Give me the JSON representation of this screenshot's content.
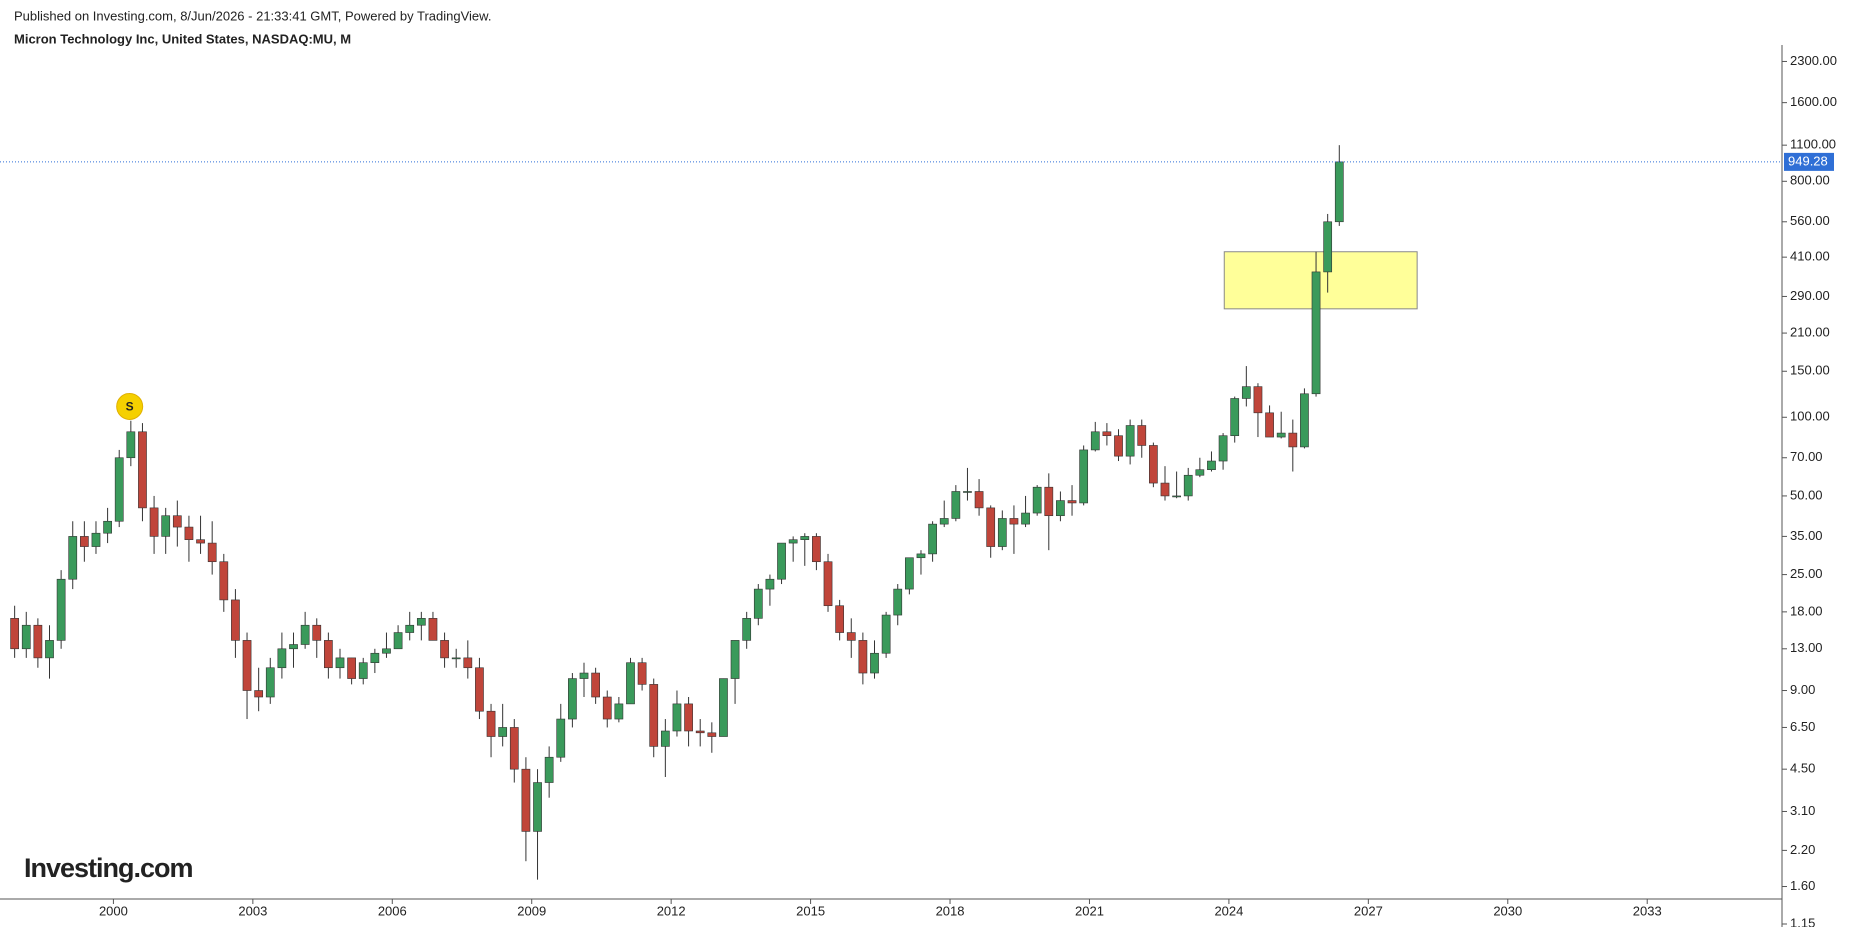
{
  "header": {
    "published": "Published on Investing.com, 8/Jun/2026 - 21:33:41 GMT, Powered by TradingView.",
    "symbol": "Micron Technology Inc, United States, NASDAQ:MU, M"
  },
  "logo": "Investing.com",
  "chart_data": {
    "type": "candlestick",
    "log_y": true,
    "up_color": "#3a9a5b",
    "down_color": "#c0453a",
    "x": [
      1997.75,
      1998,
      1998.25,
      1998.5,
      1998.75,
      1999,
      1999.25,
      1999.5,
      1999.75,
      2000,
      2000.25,
      2000.5,
      2000.75,
      2001,
      2001.25,
      2001.5,
      2001.75,
      2002,
      2002.25,
      2002.5,
      2002.75,
      2003,
      2003.25,
      2003.5,
      2003.75,
      2004,
      2004.25,
      2004.5,
      2004.75,
      2005,
      2005.25,
      2005.5,
      2005.75,
      2006,
      2006.25,
      2006.5,
      2006.75,
      2007,
      2007.25,
      2007.5,
      2007.75,
      2008,
      2008.25,
      2008.5,
      2008.75,
      2009,
      2009.25,
      2009.5,
      2009.75,
      2010,
      2010.25,
      2010.5,
      2010.75,
      2011,
      2011.25,
      2011.5,
      2011.75,
      2012,
      2012.25,
      2012.5,
      2012.75,
      2013,
      2013.25,
      2013.5,
      2013.75,
      2014,
      2014.25,
      2014.5,
      2014.75,
      2015,
      2015.25,
      2015.5,
      2015.75,
      2016,
      2016.25,
      2016.5,
      2016.75,
      2017,
      2017.25,
      2017.5,
      2017.75,
      2018,
      2018.25,
      2018.5,
      2018.75,
      2019,
      2019.25,
      2019.5,
      2019.75,
      2020,
      2020.25,
      2020.5,
      2020.75,
      2021,
      2021.25,
      2021.5,
      2021.75,
      2022,
      2022.25,
      2022.5,
      2022.75,
      2023,
      2023.25,
      2023.5,
      2023.75,
      2024,
      2024.25,
      2024.5,
      2024.75,
      2025,
      2025.25,
      2025.5,
      2025.75,
      2026,
      2026.25
    ],
    "open": [
      17,
      13,
      16,
      12,
      14,
      24,
      35,
      32,
      36,
      40,
      70,
      88,
      45,
      35,
      42,
      38,
      34,
      33,
      28,
      20,
      14,
      9,
      8.5,
      11,
      13,
      13.5,
      16,
      14,
      11,
      12,
      10,
      11.5,
      12.5,
      13,
      15,
      16,
      17,
      14,
      12,
      12,
      11,
      7.5,
      6,
      6.5,
      4.5,
      2.6,
      4,
      5,
      7,
      10,
      10.5,
      8.5,
      7,
      8,
      11.5,
      9.5,
      5.5,
      6.3,
      8,
      6.3,
      6.2,
      6,
      10,
      14,
      17,
      22,
      24,
      33,
      34,
      35,
      28,
      19,
      15,
      14,
      10.5,
      12.5,
      17.5,
      22,
      29,
      30,
      39,
      41,
      52,
      52,
      45,
      32,
      41,
      39,
      43,
      54,
      42,
      48,
      47,
      75,
      88,
      85,
      71,
      93,
      78,
      56,
      50,
      50,
      60,
      63,
      68,
      85,
      118,
      131,
      104,
      84,
      87,
      77,
      123,
      360,
      560
    ],
    "high": [
      19,
      18,
      17,
      16,
      26,
      40,
      40,
      40,
      45,
      75,
      97,
      95,
      50,
      45,
      48,
      42,
      42,
      40,
      30,
      22,
      15,
      11,
      12,
      15,
      15,
      18,
      17,
      15,
      13,
      12,
      12,
      13,
      15,
      16,
      18,
      18,
      18,
      15,
      13,
      14,
      12,
      8,
      8,
      7,
      5,
      4.5,
      5.5,
      8,
      10.5,
      11.5,
      11,
      9,
      8.5,
      12,
      12,
      10,
      7,
      9,
      8.5,
      7,
      6.8,
      10,
      14,
      18,
      23,
      25,
      33,
      35,
      36,
      36,
      30,
      20,
      17,
      15,
      14,
      18,
      23,
      29,
      31,
      40,
      48,
      55,
      64,
      58,
      46,
      44,
      46,
      50,
      55,
      61,
      52,
      55,
      78,
      96,
      95,
      90,
      98,
      98,
      80,
      65,
      62,
      64,
      70,
      74,
      87,
      120,
      157,
      135,
      111,
      105,
      98,
      129,
      430,
      600,
      1100
    ],
    "low": [
      12,
      12,
      11,
      10,
      13,
      22,
      28,
      30,
      33,
      38,
      65,
      40,
      30,
      30,
      32,
      28,
      30,
      25,
      18,
      12,
      7,
      7.5,
      8,
      10,
      11,
      13,
      12,
      10,
      10,
      9.5,
      9.5,
      10.5,
      12,
      13,
      14,
      14,
      14,
      11,
      11,
      10,
      7,
      5,
      5.5,
      4,
      2,
      1.7,
      3.5,
      4.8,
      6.5,
      8.5,
      8,
      6.5,
      6.8,
      8,
      9,
      5,
      4.2,
      6,
      5.5,
      5.5,
      5.2,
      6,
      8,
      13,
      16,
      19,
      23,
      28,
      27,
      26,
      18,
      14,
      12,
      9.5,
      10,
      12,
      16,
      21,
      25,
      28,
      38,
      40,
      48,
      42,
      29,
      31,
      30,
      38,
      42,
      31,
      40,
      42,
      46,
      74,
      78,
      68,
      66,
      70,
      54,
      48,
      49,
      48,
      59,
      62,
      63,
      80,
      110,
      84,
      86,
      83,
      62,
      76,
      120,
      300,
      540
    ],
    "close": [
      13,
      16,
      12,
      14,
      24,
      35,
      32,
      36,
      40,
      70,
      88,
      45,
      35,
      42,
      38,
      34,
      33,
      28,
      20,
      14,
      9,
      8.5,
      11,
      13,
      13.5,
      16,
      14,
      11,
      12,
      10,
      11.5,
      12.5,
      13,
      15,
      16,
      17,
      14,
      12,
      12,
      11,
      7.5,
      6,
      6.5,
      4.5,
      2.6,
      4,
      5,
      7,
      10,
      10.5,
      8.5,
      7,
      8,
      11.5,
      9.5,
      5.5,
      6.3,
      8,
      6.3,
      6.2,
      6,
      10,
      14,
      17,
      22,
      24,
      33,
      34,
      35,
      28,
      19,
      15,
      14,
      10.5,
      12.5,
      17.5,
      22,
      29,
      30,
      39,
      41,
      52,
      52,
      45,
      32,
      41,
      39,
      43,
      54,
      42,
      48,
      47,
      75,
      88,
      85,
      71,
      93,
      78,
      56,
      50,
      50,
      60,
      63,
      68,
      85,
      118,
      131,
      104,
      84,
      87,
      77,
      123,
      360,
      560,
      949.28
    ],
    "last_price": 949.28,
    "last_price_color": "#2f6fd6",
    "zone": {
      "x": [
        2023.9,
        2028.05
      ],
      "y": [
        260,
        430
      ],
      "color": "#ffff99"
    },
    "marker": {
      "x": 2000.35,
      "y": 110,
      "label": "S",
      "color": "#f5d000"
    },
    "xlim": [
      1997.56,
      2035.9
    ],
    "xticks": [
      2000,
      2003,
      2006,
      2009,
      2012,
      2015,
      2018,
      2021,
      2024,
      2027,
      2030,
      2033
    ],
    "ylim": [
      1.12,
      2478
    ],
    "yticks": [
      {
        "value": 2300,
        "label": "2300.00"
      },
      {
        "value": 1600,
        "label": "1600.00"
      },
      {
        "value": 1100,
        "label": "1100.00"
      },
      {
        "value": 800,
        "label": "800.00"
      },
      {
        "value": 560,
        "label": "560.00"
      },
      {
        "value": 410,
        "label": "410.00"
      },
      {
        "value": 290,
        "label": "290.00"
      },
      {
        "value": 210,
        "label": "210.00"
      },
      {
        "value": 150,
        "label": "150.00"
      },
      {
        "value": 100,
        "label": "100.00"
      },
      {
        "value": 70,
        "label": "70.00"
      },
      {
        "value": 50,
        "label": "50.00"
      },
      {
        "value": 35,
        "label": "35.00"
      },
      {
        "value": 25,
        "label": "25.00"
      },
      {
        "value": 18,
        "label": "18.00"
      },
      {
        "value": 13,
        "label": "13.00"
      },
      {
        "value": 9,
        "label": "9.00"
      },
      {
        "value": 6.5,
        "label": "6.50"
      },
      {
        "value": 4.5,
        "label": "4.50"
      },
      {
        "value": 3.1,
        "label": "3.10"
      },
      {
        "value": 2.2,
        "label": "2.20"
      },
      {
        "value": 1.6,
        "label": "1.60"
      },
      {
        "value": 1.15,
        "label": "1.15"
      }
    ]
  }
}
